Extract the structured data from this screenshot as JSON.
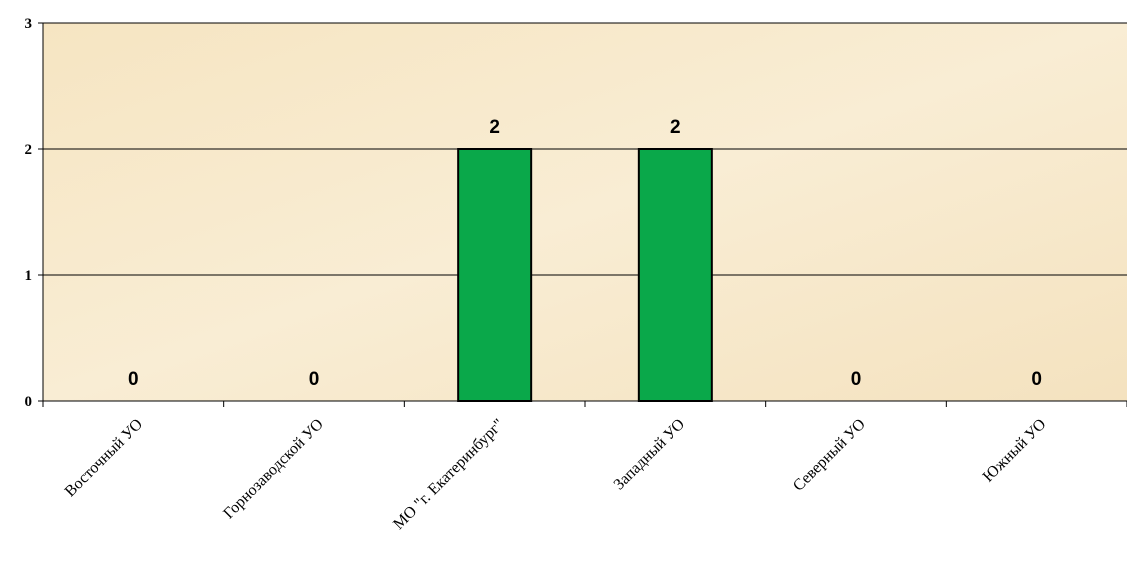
{
  "chart_data": {
    "type": "bar",
    "categories": [
      "Восточный УО",
      "Горнозаводской УО",
      "МО \"г. Екатеринбург\"",
      "Западный УО",
      "Северный УО",
      "Южный УО"
    ],
    "values": [
      0,
      0,
      2,
      2,
      0,
      0
    ],
    "data_labels": [
      "0",
      "0",
      "2",
      "2",
      "0",
      "0"
    ],
    "ylim": [
      0,
      3
    ],
    "y_ticks": [
      "0",
      "1",
      "2",
      "3"
    ],
    "grid": true,
    "colors": {
      "bar_fill": "#0aa84a",
      "bar_stroke": "#000000",
      "plot_background": "#f7e8c8",
      "gridline": "#000000"
    }
  }
}
